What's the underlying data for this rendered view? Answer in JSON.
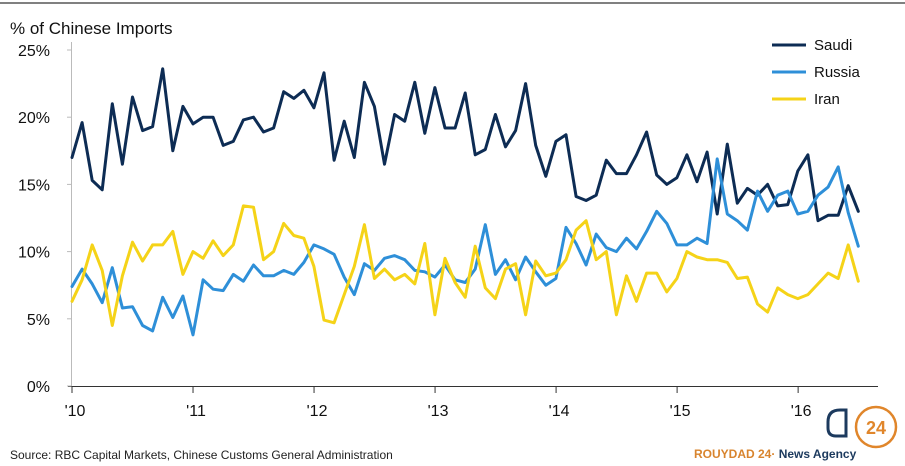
{
  "chart_data": {
    "type": "line",
    "ylabel": "% of Chinese Imports",
    "ylim": [
      0,
      25
    ],
    "yticks": [
      0,
      5,
      10,
      15,
      20,
      25
    ],
    "ytick_labels": [
      "0%",
      "5%",
      "10%",
      "15%",
      "20%",
      "25%"
    ],
    "xlim": [
      2010,
      2016.66
    ],
    "xticks": [
      2010,
      2011,
      2012,
      2013,
      2014,
      2015,
      2016
    ],
    "xtick_labels": [
      "'10",
      "'11",
      "'12",
      "'13",
      "'14",
      "'15",
      "'16"
    ],
    "legend_position": "top-right",
    "series": [
      {
        "name": "Saudi",
        "color": "#0d2c54",
        "start": 2010,
        "step": 0.0833,
        "values": [
          17.0,
          19.6,
          15.3,
          14.6,
          21.0,
          16.5,
          21.5,
          19.0,
          19.3,
          23.6,
          17.5,
          20.8,
          19.5,
          20.0,
          20.0,
          17.9,
          18.2,
          19.8,
          20.0,
          18.9,
          19.2,
          21.9,
          21.4,
          22.0,
          20.7,
          23.3,
          16.8,
          19.7,
          17.0,
          22.6,
          20.8,
          16.5,
          20.2,
          19.7,
          22.6,
          18.8,
          22.2,
          19.2,
          19.2,
          21.8,
          17.2,
          17.6,
          20.2,
          17.8,
          19.0,
          22.5,
          17.9,
          15.6,
          18.2,
          18.7,
          14.1,
          13.8,
          14.2,
          16.8,
          15.8,
          15.8,
          17.2,
          18.9,
          15.7,
          15.0,
          15.5,
          17.2,
          15.2,
          17.4,
          12.8,
          18.0,
          13.6,
          14.7,
          14.2,
          15.0,
          13.4,
          13.5,
          16.0,
          17.2,
          12.3,
          12.7,
          12.7,
          14.9,
          13.0
        ]
      },
      {
        "name": "Russia",
        "color": "#2e8fd8",
        "start": 2010,
        "step": 0.0833,
        "values": [
          7.4,
          8.7,
          7.6,
          6.2,
          8.8,
          5.8,
          5.9,
          4.5,
          4.1,
          6.6,
          5.1,
          6.7,
          3.8,
          7.9,
          7.2,
          7.1,
          8.3,
          7.8,
          9.0,
          8.2,
          8.2,
          8.6,
          8.3,
          9.2,
          10.5,
          10.2,
          9.8,
          8.1,
          6.8,
          9.1,
          8.6,
          9.5,
          9.7,
          9.4,
          8.6,
          8.5,
          8.1,
          9.0,
          7.9,
          7.7,
          8.7,
          12.0,
          8.3,
          9.4,
          7.9,
          9.6,
          8.5,
          7.5,
          8.0,
          11.8,
          10.6,
          9.0,
          11.3,
          10.3,
          10.0,
          11.0,
          10.2,
          11.5,
          13.0,
          12.1,
          10.5,
          10.5,
          11.0,
          10.6,
          16.9,
          12.8,
          12.3,
          11.6,
          14.5,
          13.0,
          14.2,
          14.5,
          12.8,
          13.0,
          14.2,
          14.8,
          16.3,
          12.9,
          10.4
        ]
      },
      {
        "name": "Iran",
        "color": "#f5d318",
        "start": 2010,
        "step": 0.0833,
        "values": [
          6.3,
          7.9,
          10.5,
          8.6,
          4.5,
          8.2,
          10.7,
          9.3,
          10.5,
          10.5,
          11.5,
          8.3,
          10.0,
          9.5,
          10.8,
          9.7,
          10.5,
          13.4,
          13.3,
          9.4,
          10.0,
          12.1,
          11.2,
          11.0,
          8.9,
          4.9,
          4.7,
          6.8,
          8.9,
          12.0,
          8.0,
          8.7,
          7.9,
          8.3,
          7.6,
          10.6,
          5.3,
          9.5,
          7.7,
          6.6,
          10.4,
          7.3,
          6.5,
          8.7,
          9.1,
          5.3,
          9.3,
          8.2,
          8.4,
          9.4,
          11.6,
          12.3,
          9.4,
          10.0,
          5.3,
          8.2,
          6.3,
          8.4,
          8.4,
          7.0,
          8.0,
          10.0,
          9.6,
          9.4,
          9.4,
          9.2,
          8.0,
          8.1,
          6.1,
          5.5,
          7.3,
          6.8,
          6.5,
          6.8,
          7.6,
          8.4,
          8.0,
          10.5,
          7.8
        ]
      }
    ]
  },
  "source": "Source: RBC Capital Markets, Chinese Customs General Administration",
  "brand": {
    "name": "ROUYDAD 24",
    "dot": "·",
    "suffix": " News Agency",
    "logo_text": "24",
    "accent": "#e0862b",
    "dark": "#1c3a5e"
  }
}
